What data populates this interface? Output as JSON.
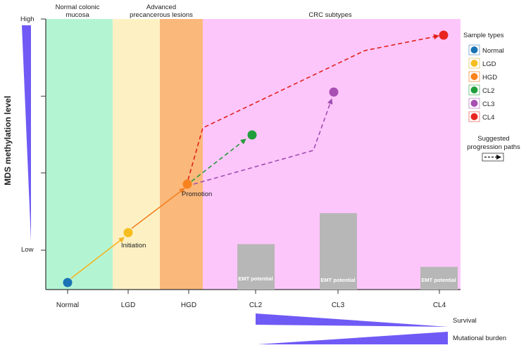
{
  "y_axis": {
    "label": "MDS methylation level",
    "high": "High",
    "low": "Low"
  },
  "zones": [
    {
      "label_lines": [
        "Normal colonic",
        "mucosa"
      ],
      "color": "#b3f5d3"
    },
    {
      "label_lines": [],
      "color": "#fdf1c4"
    },
    {
      "label_lines": [
        "Advanced",
        "precancerous lesions"
      ],
      "color": "#fbb87b"
    },
    {
      "label_lines": [
        "CRC subtypes"
      ],
      "color": "#fdc6fb"
    }
  ],
  "x_ticks": [
    "Normal",
    "LGD",
    "HGD",
    "CL2",
    "CL3",
    "CL4"
  ],
  "points": [
    {
      "type": "Normal",
      "color": "#1a73b5"
    },
    {
      "type": "LGD",
      "color": "#f5bd1f"
    },
    {
      "type": "HGD",
      "color": "#f8821d"
    },
    {
      "type": "CL2",
      "color": "#1f9e3b"
    },
    {
      "type": "CL3",
      "color": "#a84fb3"
    },
    {
      "type": "CL4",
      "color": "#e8251f"
    }
  ],
  "annotations": {
    "initiation": "Initiation",
    "promotion": "Promotion"
  },
  "emt_bars": [
    {
      "type": "CL2",
      "level": 0.44,
      "label": "EMT potential"
    },
    {
      "type": "CL3",
      "level": 0.74,
      "label": "EMT potential"
    },
    {
      "type": "CL4",
      "level": 0.22,
      "label": "EMT potential"
    }
  ],
  "legend": {
    "title": "Sample types",
    "items": [
      "Normal",
      "LGD",
      "HGD",
      "CL2",
      "CL3",
      "CL4"
    ],
    "paths_title_lines": [
      "Suggested",
      "progression paths"
    ]
  },
  "bottom_wedges": {
    "survival": "Survival",
    "mutational_burden": "Mutational burden"
  },
  "colors": {
    "wedge": "#6f5af5",
    "bar": "#b7b7b7",
    "axis": "#333333"
  }
}
